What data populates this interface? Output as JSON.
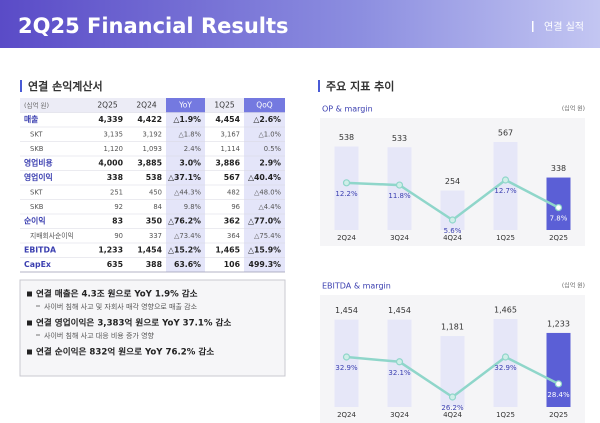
{
  "header": {
    "title": "2Q25 Financial Results",
    "section": "연결 실적"
  },
  "income_statement": {
    "title": "연결 손익계산서",
    "unit": "(십억 원)",
    "columns": [
      "2Q25",
      "2Q24",
      "YoY",
      "1Q25",
      "QoQ"
    ],
    "highlight_columns": [
      2,
      4
    ],
    "rows": [
      {
        "label": "매출",
        "bold": true,
        "cells": [
          "4,339",
          "4,422",
          "△1.9%",
          "4,454",
          "△2.6%"
        ]
      },
      {
        "label": "SKT",
        "bold": false,
        "cells": [
          "3,135",
          "3,192",
          "△1.8%",
          "3,167",
          "△1.0%"
        ]
      },
      {
        "label": "SKB",
        "bold": false,
        "cells": [
          "1,120",
          "1,093",
          "2.4%",
          "1,114",
          "0.5%"
        ]
      },
      {
        "label": "영업비용",
        "bold": true,
        "cells": [
          "4,000",
          "3,885",
          "3.0%",
          "3,886",
          "2.9%"
        ]
      },
      {
        "label": "영업이익",
        "bold": true,
        "cells": [
          "338",
          "538",
          "△37.1%",
          "567",
          "△40.4%"
        ]
      },
      {
        "label": "SKT",
        "bold": false,
        "cells": [
          "251",
          "450",
          "△44.3%",
          "482",
          "△48.0%"
        ]
      },
      {
        "label": "SKB",
        "bold": false,
        "cells": [
          "92",
          "84",
          "9.8%",
          "96",
          "△4.4%"
        ]
      },
      {
        "label": "순이익",
        "bold": true,
        "cells": [
          "83",
          "350",
          "△76.2%",
          "362",
          "△77.0%"
        ]
      },
      {
        "label": "지배회사순이익",
        "bold": false,
        "cells": [
          "90",
          "337",
          "△73.4%",
          "364",
          "△75.4%"
        ]
      },
      {
        "label": "EBITDA",
        "bold": true,
        "cells": [
          "1,233",
          "1,454",
          "△15.2%",
          "1,465",
          "△15.9%"
        ]
      },
      {
        "label": "CapEx",
        "bold": true,
        "cells": [
          "635",
          "388",
          "63.6%",
          "106",
          "499.3%"
        ]
      }
    ]
  },
  "summary": [
    {
      "text": "연결 매출은 4.3조 원으로 YoY 1.9% 감소",
      "note": "사이버 침해 사고 및 자회사 매각 영향으로 매출 감소"
    },
    {
      "text": "연결 영업이익은 3,383억 원으로 YoY 37.1% 감소",
      "note": "사이버 침해 사고 대응 비용 증가 영향"
    },
    {
      "text": "연결 순이익은 832억 원으로 YoY 76.2% 감소"
    }
  ],
  "trend_title": "주요 지표 추이",
  "chart_data": [
    {
      "type": "bar_line",
      "title": "OP & margin",
      "unit": "(십억 원)",
      "categories": [
        "2Q24",
        "3Q24",
        "4Q24",
        "1Q25",
        "2Q25"
      ],
      "series": [
        {
          "type": "bar",
          "values": [
            538,
            533,
            254,
            567,
            338
          ],
          "colors": [
            "#e6e7f8",
            "#e6e7f8",
            "#e6e7f8",
            "#e6e7f8",
            "#5b5fd6"
          ]
        },
        {
          "type": "line",
          "axis": "y2",
          "color": "#8fd6ca",
          "values": [
            12.2,
            11.8,
            5.6,
            12.7,
            7.8
          ],
          "value_labels": [
            "12.2%",
            "11.8%",
            "5.6%",
            "12.7%",
            "7.8%"
          ]
        }
      ]
    },
    {
      "type": "bar_line",
      "title": "EBITDA & margin",
      "unit": "(십억 원)",
      "categories": [
        "2Q24",
        "3Q24",
        "4Q24",
        "1Q25",
        "2Q25"
      ],
      "series": [
        {
          "type": "bar",
          "values": [
            1454,
            1454,
            1181,
            1465,
            1233
          ],
          "value_labels": [
            "1,454",
            "1,454",
            "1,181",
            "1,465",
            "1,233"
          ],
          "colors": [
            "#e6e7f8",
            "#e6e7f8",
            "#e6e7f8",
            "#e6e7f8",
            "#5b5fd6"
          ]
        },
        {
          "type": "line",
          "axis": "y2",
          "color": "#8fd6ca",
          "values": [
            32.9,
            32.1,
            26.2,
            32.9,
            28.4
          ],
          "value_labels": [
            "32.9%",
            "32.1%",
            "26.2%",
            "32.9%",
            "28.4%"
          ]
        }
      ]
    }
  ]
}
